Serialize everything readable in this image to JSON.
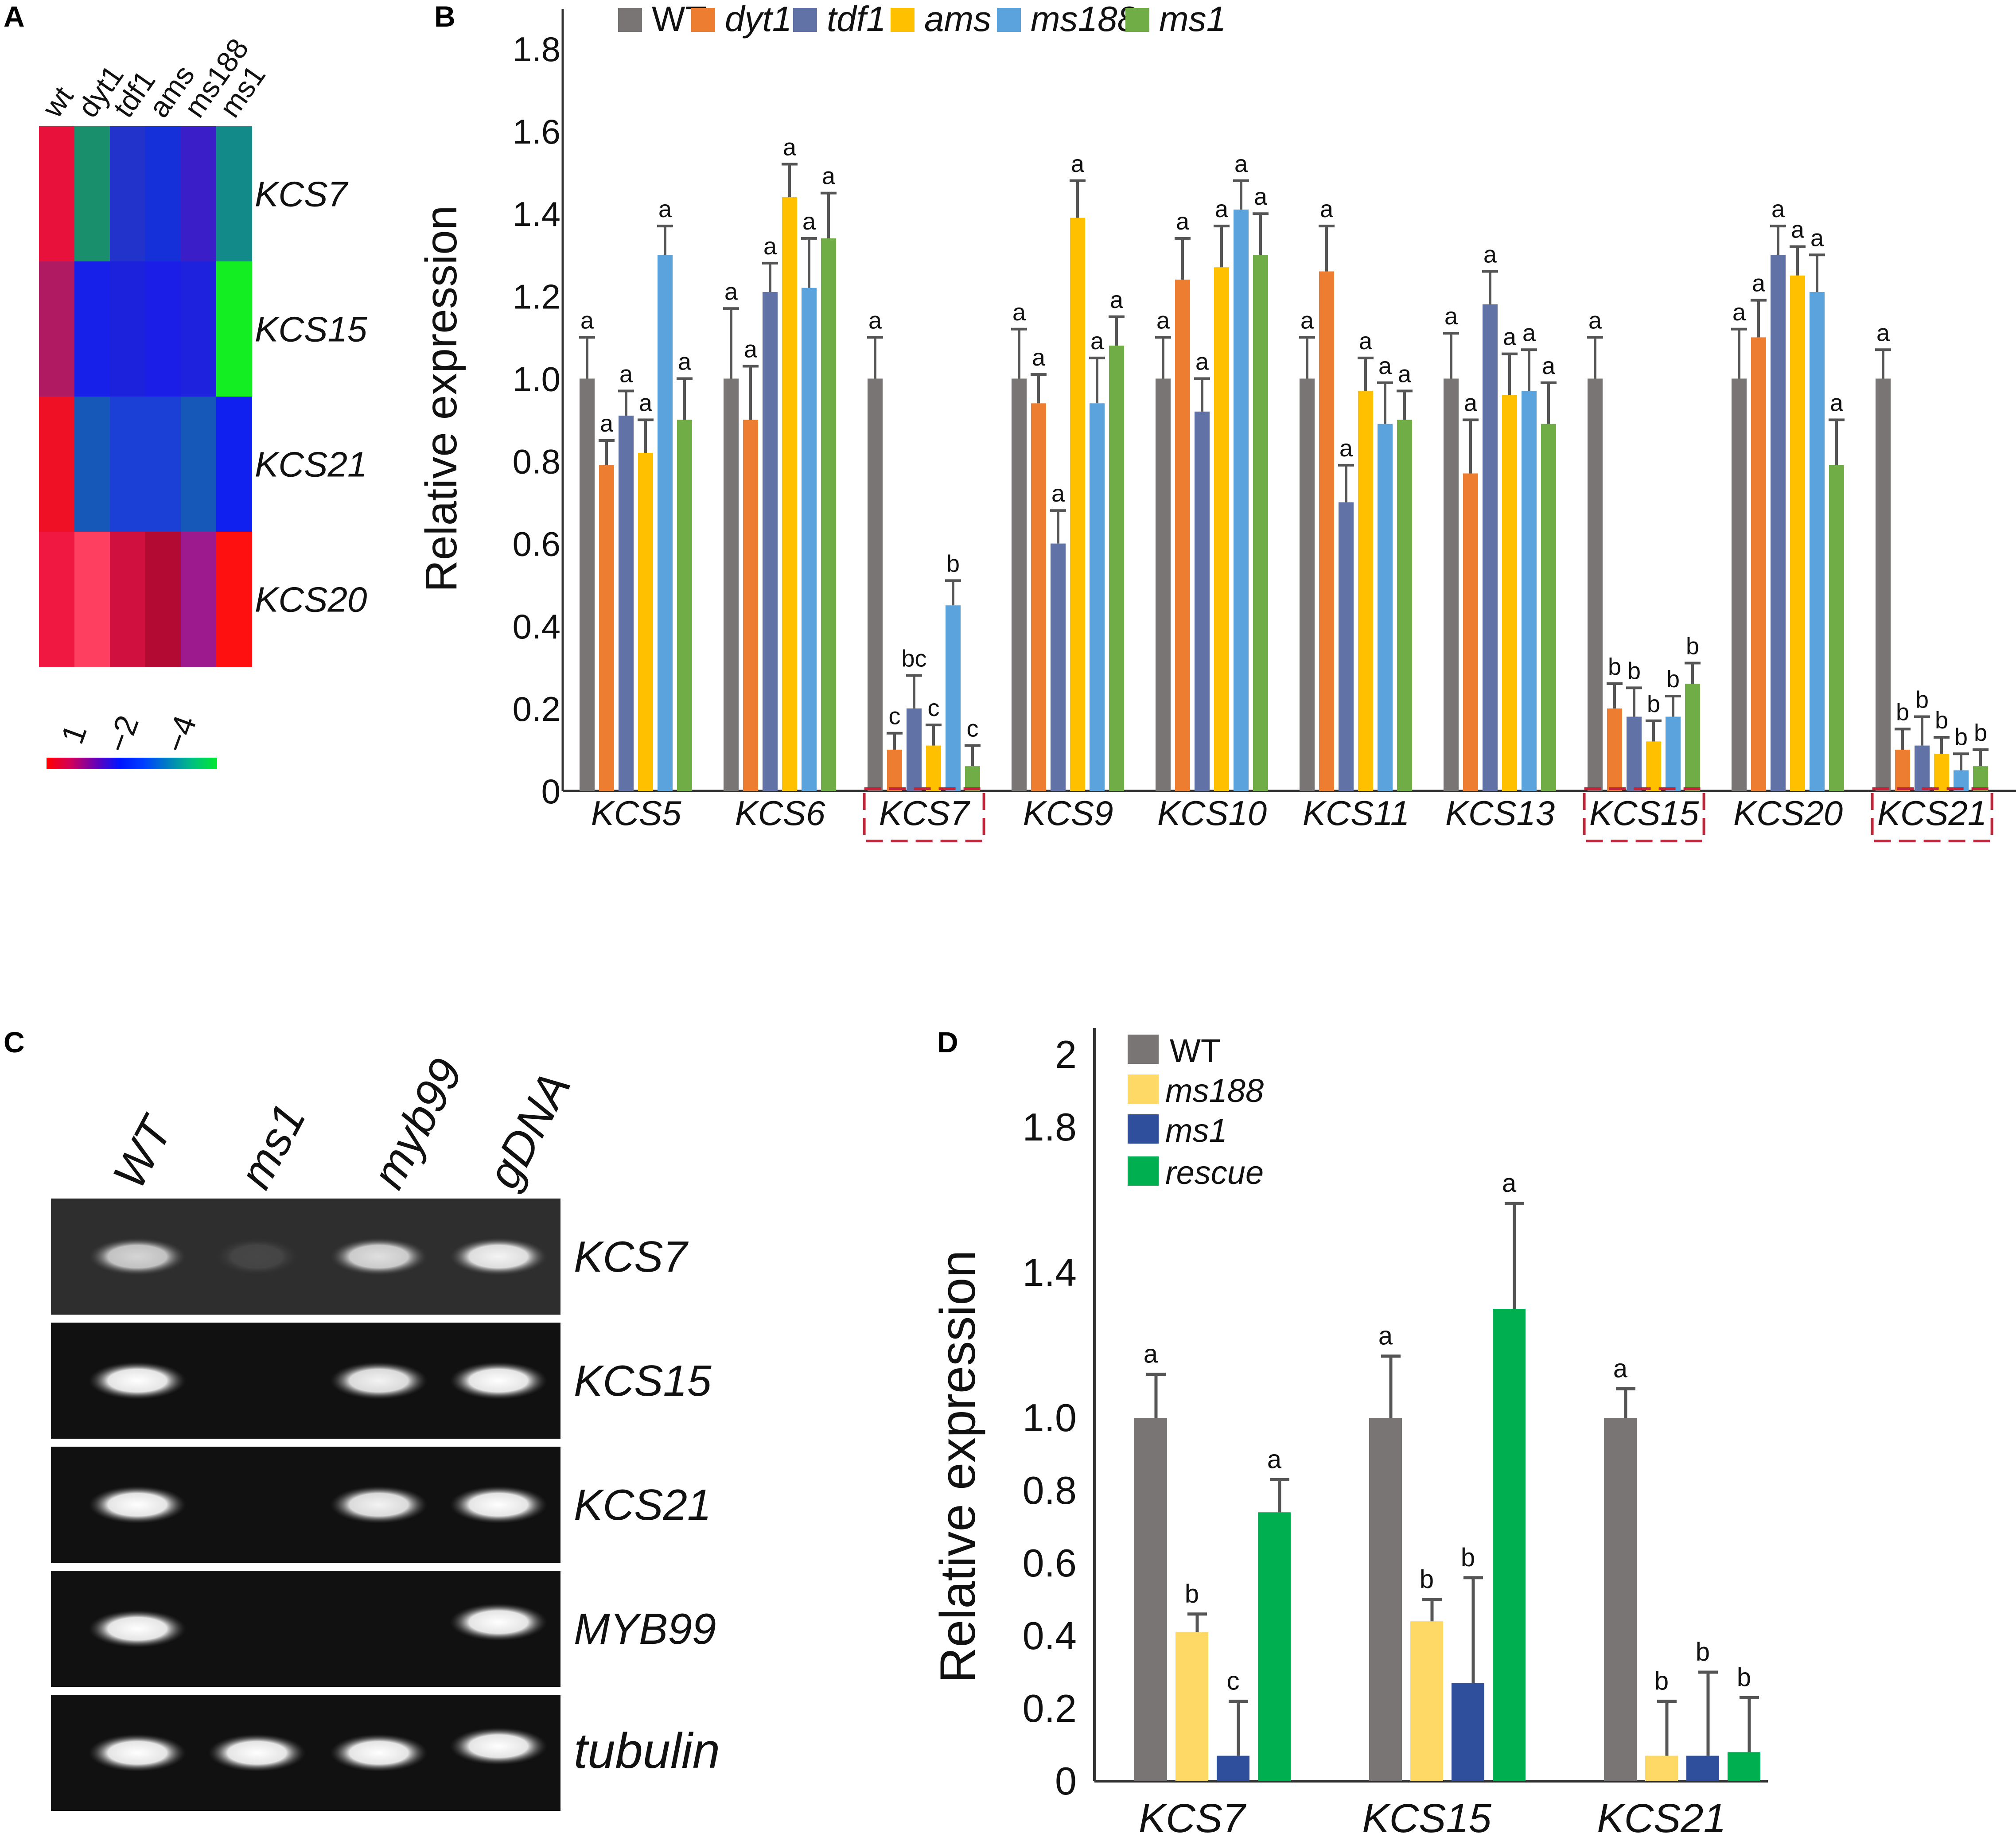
{
  "panels": {
    "a": "A",
    "b": "B",
    "c": "C",
    "d": "D"
  },
  "chart_data": [
    {
      "id": "A",
      "type": "heatmap",
      "columns": [
        "wt",
        "dyt1",
        "tdf1",
        "ams",
        "ms188",
        "ms1"
      ],
      "rows": [
        "KCS7",
        "KCS15",
        "KCS21",
        "KCS20"
      ],
      "cell_colors": [
        [
          "#e8113b",
          "#1a8f6b",
          "#2233cc",
          "#1530d8",
          "#3a1fc8",
          "#128a8a"
        ],
        [
          "#b01a62",
          "#1620e8",
          "#1c22dc",
          "#1a1ee6",
          "#1e22dc",
          "#12ee22"
        ],
        [
          "#f01026",
          "#1558b8",
          "#1a40d6",
          "#1a40d6",
          "#1558b8",
          "#1020ee"
        ],
        [
          "#f01840",
          "#ff3f60",
          "#d0103e",
          "#b20a32",
          "#9c1a8e",
          "#ff1010"
        ]
      ],
      "scale": {
        "ticks": [
          "1",
          "−2",
          "−4"
        ],
        "colors": [
          "#ff0000",
          "#d0005a",
          "#6a00b4",
          "#0014ff",
          "#0040ff",
          "#0080c0",
          "#00c080",
          "#00e830"
        ]
      }
    },
    {
      "id": "B",
      "type": "bar",
      "ylabel": "Relative expression",
      "ylim": [
        0,
        1.8
      ],
      "yticks": [
        "0",
        "0.2",
        "0.4",
        "0.6",
        "0.8",
        "1.0",
        "1.2",
        "1.4",
        "1.6",
        "1.8"
      ],
      "categories": [
        "KCS5",
        "KCS6",
        "KCS7",
        "KCS9",
        "KCS10",
        "KCS11",
        "KCS13",
        "KCS15",
        "KCS20",
        "KCS21"
      ],
      "highlighted": [
        "KCS7",
        "KCS15",
        "KCS21"
      ],
      "series": [
        {
          "name": "WT",
          "italic": false,
          "color": "#7a7575",
          "values": [
            1.0,
            1.0,
            1.0,
            1.0,
            1.0,
            1.0,
            1.0,
            1.0,
            1.0,
            1.0
          ],
          "errors": [
            0.1,
            0.17,
            0.1,
            0.12,
            0.1,
            0.1,
            0.11,
            0.1,
            0.12,
            0.07
          ],
          "labels": [
            "a",
            "a",
            "a",
            "a",
            "a",
            "a",
            "a",
            "a",
            "a",
            "a"
          ]
        },
        {
          "name": "dyt1",
          "italic": true,
          "color": "#ed7d31",
          "values": [
            0.79,
            0.9,
            0.1,
            0.94,
            1.24,
            1.26,
            0.77,
            0.2,
            1.1,
            0.1
          ],
          "errors": [
            0.06,
            0.13,
            0.04,
            0.07,
            0.1,
            0.11,
            0.13,
            0.06,
            0.09,
            0.05
          ],
          "labels": [
            "a",
            "a",
            "c",
            "a",
            "a",
            "a",
            "a",
            "b",
            "a",
            "b"
          ]
        },
        {
          "name": "tdf1",
          "italic": true,
          "color": "#6072a6",
          "values": [
            0.91,
            1.21,
            0.2,
            0.6,
            0.92,
            0.7,
            1.18,
            0.18,
            1.3,
            0.11
          ],
          "errors": [
            0.06,
            0.07,
            0.08,
            0.08,
            0.08,
            0.09,
            0.08,
            0.07,
            0.07,
            0.07
          ],
          "labels": [
            "a",
            "a",
            "bc",
            "a",
            "a",
            "a",
            "a",
            "b",
            "a",
            "b"
          ]
        },
        {
          "name": "ams",
          "italic": true,
          "color": "#ffc000",
          "values": [
            0.82,
            1.44,
            0.11,
            1.39,
            1.27,
            0.97,
            0.96,
            0.12,
            1.25,
            0.09
          ],
          "errors": [
            0.08,
            0.08,
            0.05,
            0.09,
            0.1,
            0.08,
            0.1,
            0.05,
            0.07,
            0.04
          ],
          "labels": [
            "a",
            "a",
            "c",
            "a",
            "a",
            "a",
            "a",
            "b",
            "a",
            "b"
          ]
        },
        {
          "name": "ms188",
          "italic": true,
          "color": "#5ba3dc",
          "values": [
            1.3,
            1.22,
            0.45,
            0.94,
            1.41,
            0.89,
            0.97,
            0.18,
            1.21,
            0.05
          ],
          "errors": [
            0.07,
            0.12,
            0.06,
            0.11,
            0.07,
            0.1,
            0.1,
            0.05,
            0.09,
            0.04
          ],
          "labels": [
            "a",
            "a",
            "b",
            "a",
            "a",
            "a",
            "a",
            "b",
            "a",
            "b"
          ]
        },
        {
          "name": "ms1",
          "italic": true,
          "color": "#70ad47",
          "values": [
            0.9,
            1.34,
            0.06,
            1.08,
            1.3,
            0.9,
            0.89,
            0.26,
            0.79,
            0.06
          ],
          "errors": [
            0.1,
            0.11,
            0.05,
            0.07,
            0.1,
            0.07,
            0.1,
            0.05,
            0.11,
            0.04
          ],
          "labels": [
            "a",
            "a",
            "c",
            "a",
            "a",
            "a",
            "a",
            "b",
            "a",
            "b"
          ]
        }
      ]
    },
    {
      "id": "C",
      "type": "gel",
      "lanes": [
        "WT",
        "ms1",
        "myb99",
        "gDNA"
      ],
      "rows": [
        {
          "gene": "KCS7",
          "bands": [
            0.8,
            0.12,
            0.85,
            0.95
          ]
        },
        {
          "gene": "KCS15",
          "bands": [
            1.0,
            0.0,
            0.95,
            1.0
          ]
        },
        {
          "gene": "KCS21",
          "bands": [
            1.0,
            0.0,
            0.95,
            1.0
          ]
        },
        {
          "gene": "MYB99",
          "bands": [
            1.0,
            0.0,
            0.0,
            1.0
          ]
        },
        {
          "gene": "tubulin",
          "bands": [
            1.0,
            1.0,
            1.0,
            1.0
          ]
        }
      ]
    },
    {
      "id": "D",
      "type": "bar",
      "ylabel": "Relative expression",
      "ylim": [
        0,
        2.0
      ],
      "yticks": [
        "0",
        "0.2",
        "0.4",
        "0.6",
        "0.8",
        "1.0",
        "1.4",
        "1.8",
        "2"
      ],
      "ytick_values": [
        0,
        0.2,
        0.4,
        0.6,
        0.8,
        1.0,
        1.4,
        1.8,
        2.0
      ],
      "categories": [
        "KCS7",
        "KCS15",
        "KCS21"
      ],
      "series": [
        {
          "name": "WT",
          "italic": false,
          "color": "#7a7575",
          "values": [
            1.0,
            1.0,
            1.0
          ],
          "errors": [
            0.12,
            0.17,
            0.08
          ],
          "labels": [
            "a",
            "a",
            "a"
          ]
        },
        {
          "name": "ms188",
          "italic": true,
          "color": "#ffd966",
          "values": [
            0.41,
            0.44,
            0.07
          ],
          "errors": [
            0.05,
            0.06,
            0.15
          ],
          "labels": [
            "b",
            "b",
            "b"
          ]
        },
        {
          "name": "ms1",
          "italic": true,
          "color": "#2f4e9c",
          "values": [
            0.07,
            0.27,
            0.07
          ],
          "errors": [
            0.15,
            0.29,
            0.23
          ],
          "labels": [
            "c",
            "b",
            "b"
          ]
        },
        {
          "name": "rescue",
          "italic": true,
          "color": "#00b050",
          "values": [
            0.74,
            1.3,
            0.08
          ],
          "errors": [
            0.09,
            0.29,
            0.15
          ],
          "labels": [
            "a",
            "a",
            "b"
          ]
        }
      ]
    }
  ]
}
